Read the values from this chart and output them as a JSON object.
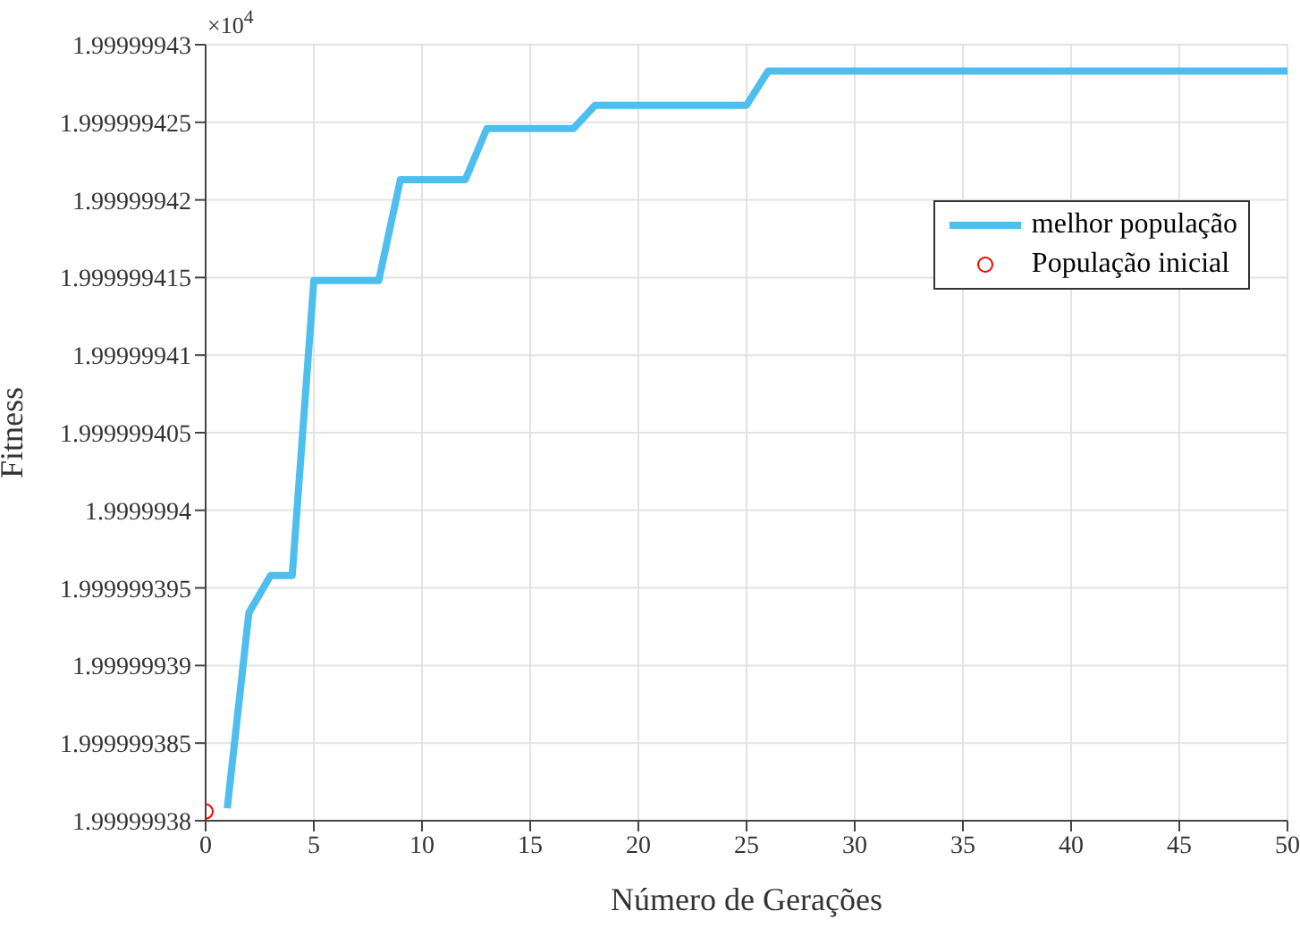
{
  "chart_data": {
    "type": "line",
    "xlabel": "Número de Gerações",
    "ylabel": "Fitness",
    "annotations": [
      "×10$^{4}$"
    ],
    "xlim": [
      0,
      50
    ],
    "xticks": [
      0,
      5,
      10,
      15,
      20,
      25,
      30,
      35,
      40,
      45,
      50
    ],
    "ylim": [
      1.99999938,
      1.99999943
    ],
    "yticks": [
      1.99999938,
      1.999999385,
      1.99999939,
      1.999999395,
      1.9999994,
      1.999999405,
      1.99999941,
      1.999999415,
      1.99999942,
      1.999999425,
      1.99999943
    ],
    "grid": true,
    "legend": "top right",
    "line_style": "solid",
    "series": [
      {
        "name": "melhor população",
        "type": "line",
        "color": "#4dbeee",
        "marker": "none",
        "x": [
          1,
          2,
          3,
          4,
          5,
          8,
          9,
          12,
          13,
          17,
          18,
          25,
          26,
          50
        ],
        "values": [
          1.9999993808,
          1.9999993934,
          1.9999993958,
          1.9999993958,
          1.9999994148,
          1.9999994148,
          1.9999994213,
          1.9999994213,
          1.9999994246,
          1.9999994246,
          1.9999994261,
          1.9999994261,
          1.9999994283,
          1.9999994283
        ]
      },
      {
        "name": "População inicial",
        "type": "scatter",
        "color": "#ff0000",
        "marker": "circle",
        "x": [
          0
        ],
        "values": [
          1.9999993806
        ]
      }
    ]
  }
}
